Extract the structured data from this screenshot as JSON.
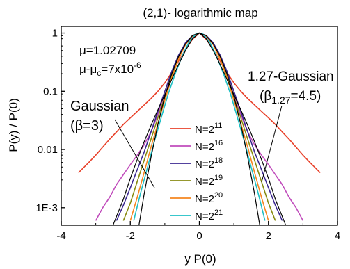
{
  "chart_data": {
    "type": "line",
    "title": "(2,1)- logarithmic map",
    "xlabel": "y P(0)",
    "ylabel": "P(y) / P(0)",
    "xlim": [
      -4,
      4
    ],
    "ylim": [
      0.0005,
      1.3
    ],
    "y_scale": "log",
    "x_ticks": [
      {
        "value": -4,
        "label": "-4"
      },
      {
        "value": -2,
        "label": "-2"
      },
      {
        "value": 0,
        "label": "0"
      },
      {
        "value": 2,
        "label": "2"
      },
      {
        "value": 4,
        "label": "4"
      }
    ],
    "y_ticks": [
      {
        "value": 1,
        "label": "1"
      },
      {
        "value": 0.1,
        "label": "0.1"
      },
      {
        "value": 0.01,
        "label": "0.01"
      },
      {
        "value": 0.001,
        "label": "1E-3"
      }
    ],
    "params": {
      "mu_label": "μ=1.02709",
      "mu_diff_prefix": "μ-μ",
      "mu_diff_sub": "c",
      "mu_diff_mid": "=7x10",
      "mu_diff_sup": "-6"
    },
    "legend": {
      "placement": "center",
      "prefix": "N=2",
      "entries": [
        {
          "exp": "11",
          "color": "#e8412a"
        },
        {
          "exp": "16",
          "color": "#c04bbb"
        },
        {
          "exp": "18",
          "color": "#3b2790"
        },
        {
          "exp": "19",
          "color": "#878a10"
        },
        {
          "exp": "20",
          "color": "#f5861f"
        },
        {
          "exp": "21",
          "color": "#1dbfc4"
        }
      ]
    },
    "annotations": {
      "left_line1": "Gaussian",
      "left_line2": "(β=3)",
      "right_line1": "1.27-Gaussian",
      "right_prefix": "(β",
      "right_sub": "1.27",
      "right_suffix": "=4.5)"
    },
    "series": [
      {
        "name": "N=2^11",
        "color": "#e8412a",
        "x": [
          -3.5,
          -3.2,
          -3.0,
          -2.8,
          -2.6,
          -2.4,
          -2.2,
          -2.0,
          -1.8,
          -1.6,
          -1.4,
          -1.2,
          -1.0,
          -0.8,
          -0.6,
          -0.4,
          -0.2,
          0,
          0.2,
          0.4,
          0.6,
          0.8,
          1.0,
          1.2,
          1.4,
          1.6,
          1.8,
          2.0,
          2.2,
          2.4,
          2.6,
          2.8,
          3.0,
          3.2,
          3.5
        ],
        "y": [
          0.004,
          0.006,
          0.008,
          0.011,
          0.015,
          0.02,
          0.027,
          0.035,
          0.045,
          0.058,
          0.075,
          0.1,
          0.14,
          0.21,
          0.33,
          0.52,
          0.78,
          1.0,
          0.78,
          0.52,
          0.33,
          0.21,
          0.14,
          0.1,
          0.075,
          0.058,
          0.045,
          0.035,
          0.027,
          0.02,
          0.015,
          0.011,
          0.008,
          0.006,
          0.004
        ]
      },
      {
        "name": "N=2^16",
        "color": "#c04bbb",
        "x": [
          -3.0,
          -2.8,
          -2.6,
          -2.4,
          -2.2,
          -2.0,
          -1.8,
          -1.6,
          -1.4,
          -1.2,
          -1.0,
          -0.8,
          -0.6,
          -0.4,
          -0.2,
          0,
          0.2,
          0.4,
          0.6,
          0.8,
          1.0,
          1.2,
          1.4,
          1.6,
          1.8,
          2.0,
          2.2,
          2.4,
          2.6,
          2.8,
          3.0
        ],
        "y": [
          0.0006,
          0.001,
          0.0015,
          0.0025,
          0.0037,
          0.0055,
          0.008,
          0.012,
          0.02,
          0.04,
          0.085,
          0.19,
          0.38,
          0.63,
          0.88,
          1.0,
          0.88,
          0.63,
          0.38,
          0.19,
          0.085,
          0.04,
          0.02,
          0.012,
          0.008,
          0.0055,
          0.0037,
          0.0025,
          0.0015,
          0.001,
          0.0006
        ]
      },
      {
        "name": "N=2^18",
        "color": "#3b2790",
        "x": [
          -2.4,
          -2.2,
          -2.0,
          -1.8,
          -1.6,
          -1.4,
          -1.2,
          -1.0,
          -0.8,
          -0.6,
          -0.4,
          -0.2,
          0,
          0.2,
          0.4,
          0.6,
          0.8,
          1.0,
          1.2,
          1.4,
          1.6,
          1.8,
          2.0,
          2.2,
          2.4
        ],
        "y": [
          0.0006,
          0.0011,
          0.0022,
          0.0045,
          0.009,
          0.02,
          0.045,
          0.1,
          0.22,
          0.42,
          0.68,
          0.91,
          1.0,
          0.91,
          0.68,
          0.42,
          0.22,
          0.1,
          0.045,
          0.02,
          0.009,
          0.0045,
          0.0022,
          0.0011,
          0.0006
        ]
      },
      {
        "name": "N=2^19",
        "color": "#878a10",
        "x": [
          -2.2,
          -2.0,
          -1.8,
          -1.6,
          -1.4,
          -1.2,
          -1.0,
          -0.8,
          -0.6,
          -0.4,
          -0.2,
          0,
          0.2,
          0.4,
          0.6,
          0.8,
          1.0,
          1.2,
          1.4,
          1.6,
          1.8,
          2.0,
          2.2
        ],
        "y": [
          0.0006,
          0.0012,
          0.0028,
          0.0065,
          0.015,
          0.035,
          0.08,
          0.18,
          0.38,
          0.64,
          0.9,
          1.0,
          0.9,
          0.64,
          0.38,
          0.18,
          0.08,
          0.035,
          0.015,
          0.0065,
          0.0028,
          0.0012,
          0.0006
        ]
      },
      {
        "name": "N=2^20",
        "color": "#f5861f",
        "x": [
          -2.0,
          -1.8,
          -1.6,
          -1.4,
          -1.2,
          -1.0,
          -0.8,
          -0.6,
          -0.4,
          -0.2,
          0,
          0.2,
          0.4,
          0.6,
          0.8,
          1.0,
          1.2,
          1.4,
          1.6,
          1.8,
          2.0
        ],
        "y": [
          0.0006,
          0.0015,
          0.004,
          0.011,
          0.028,
          0.07,
          0.17,
          0.36,
          0.63,
          0.89,
          1.0,
          0.89,
          0.63,
          0.36,
          0.17,
          0.07,
          0.028,
          0.011,
          0.004,
          0.0015,
          0.0006
        ]
      },
      {
        "name": "N=2^21",
        "color": "#1dbfc4",
        "x": [
          -1.9,
          -1.7,
          -1.5,
          -1.3,
          -1.1,
          -0.9,
          -0.7,
          -0.5,
          -0.3,
          -0.1,
          0,
          0.1,
          0.3,
          0.5,
          0.7,
          0.9,
          1.1,
          1.3,
          1.5,
          1.7,
          1.9
        ],
        "y": [
          0.0006,
          0.0018,
          0.005,
          0.014,
          0.036,
          0.09,
          0.2,
          0.4,
          0.7,
          0.96,
          1.0,
          0.96,
          0.7,
          0.4,
          0.2,
          0.09,
          0.036,
          0.014,
          0.005,
          0.0018,
          0.0006
        ]
      },
      {
        "name": "Gaussian (β=3)",
        "color": "#000000",
        "x": [
          -1.75,
          -1.6,
          -1.4,
          -1.2,
          -1.0,
          -0.8,
          -0.6,
          -0.4,
          -0.2,
          0,
          0.2,
          0.4,
          0.6,
          0.8,
          1.0,
          1.2,
          1.4,
          1.6,
          1.75
        ],
        "y": [
          0.0005,
          0.0017,
          0.0073,
          0.027,
          0.082,
          0.2,
          0.4,
          0.65,
          0.9,
          1.0,
          0.9,
          0.65,
          0.4,
          0.2,
          0.082,
          0.027,
          0.0073,
          0.0017,
          0.0005
        ]
      },
      {
        "name": "1.27-Gaussian (β1.27=4.5)",
        "color": "#000000",
        "x": [
          -2.5,
          -2.2,
          -2.0,
          -1.8,
          -1.6,
          -1.4,
          -1.2,
          -1.0,
          -0.8,
          -0.6,
          -0.4,
          -0.2,
          0,
          0.2,
          0.4,
          0.6,
          0.8,
          1.0,
          1.2,
          1.4,
          1.6,
          1.8,
          2.0,
          2.2,
          2.5
        ],
        "y": [
          0.0005,
          0.0014,
          0.0032,
          0.0067,
          0.0135,
          0.026,
          0.048,
          0.088,
          0.16,
          0.29,
          0.5,
          0.8,
          1.0,
          0.8,
          0.5,
          0.29,
          0.16,
          0.088,
          0.048,
          0.026,
          0.0135,
          0.0067,
          0.0032,
          0.0014,
          0.0005
        ]
      }
    ]
  }
}
